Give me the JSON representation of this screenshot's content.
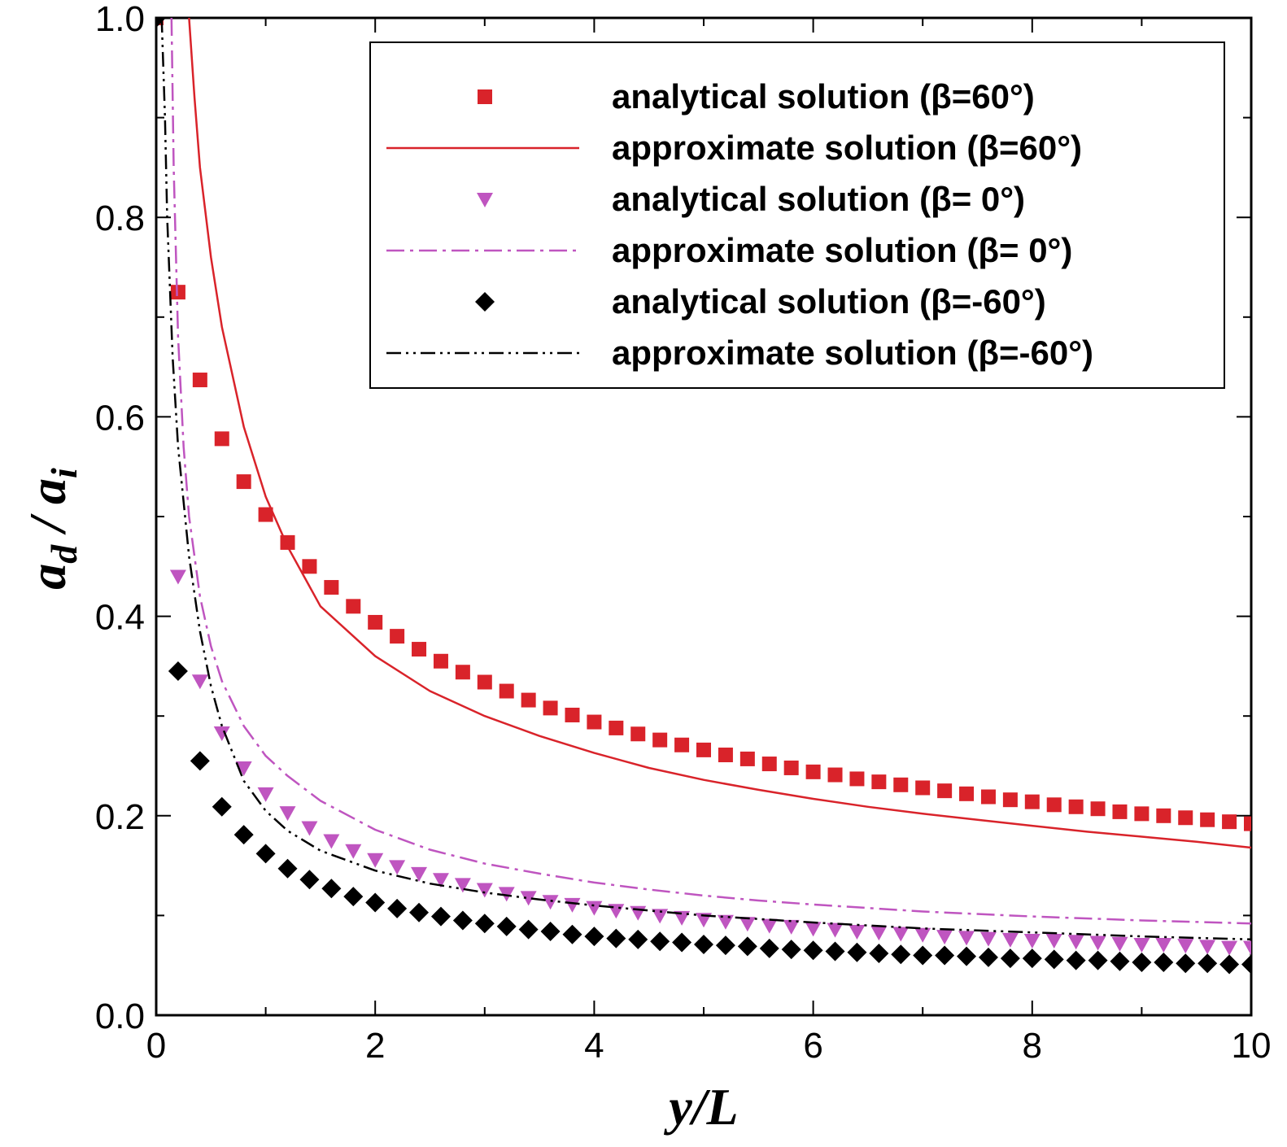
{
  "chart_data": {
    "type": "line",
    "title": "",
    "xlabel": {
      "main": "y/L"
    },
    "ylabel": {
      "num": "a",
      "num_sub": "d",
      "sep": " / ",
      "den": "a",
      "den_sub": "i"
    },
    "xlim": [
      0,
      10
    ],
    "ylim": [
      0,
      1
    ],
    "x_ticks": [
      0,
      2,
      4,
      6,
      8,
      10
    ],
    "y_ticks": [
      0.0,
      0.2,
      0.4,
      0.6,
      0.8,
      1.0
    ],
    "x_tick_labels": [
      "0",
      "2",
      "4",
      "6",
      "8",
      "10"
    ],
    "y_tick_labels": [
      "0.0",
      "0.2",
      "0.4",
      "0.6",
      "0.8",
      "1.0"
    ],
    "grid": false,
    "legend_position": "top-right",
    "colors": {
      "red": "#d9232a",
      "magenta": "#bf55c0",
      "black": "#000000"
    },
    "series": [
      {
        "name": "analytical solution (β=60°)",
        "kind": "marker",
        "marker": "square",
        "color": "#d9232a",
        "points": [
          [
            0,
            1.0
          ],
          [
            0.2,
            0.725
          ],
          [
            0.4,
            0.637
          ],
          [
            0.6,
            0.578
          ],
          [
            0.8,
            0.535
          ],
          [
            1.0,
            0.502
          ],
          [
            1.2,
            0.474
          ],
          [
            1.4,
            0.45
          ],
          [
            1.6,
            0.429
          ],
          [
            1.8,
            0.41
          ],
          [
            2.0,
            0.394
          ],
          [
            2.2,
            0.38
          ],
          [
            2.4,
            0.367
          ],
          [
            2.6,
            0.355
          ],
          [
            2.8,
            0.344
          ],
          [
            3.0,
            0.334
          ],
          [
            3.2,
            0.325
          ],
          [
            3.4,
            0.316
          ],
          [
            3.6,
            0.308
          ],
          [
            3.8,
            0.301
          ],
          [
            4.0,
            0.294
          ],
          [
            4.2,
            0.288
          ],
          [
            4.4,
            0.282
          ],
          [
            4.6,
            0.276
          ],
          [
            4.8,
            0.271
          ],
          [
            5.0,
            0.266
          ],
          [
            5.2,
            0.261
          ],
          [
            5.4,
            0.257
          ],
          [
            5.6,
            0.252
          ],
          [
            5.8,
            0.248
          ],
          [
            6.0,
            0.244
          ],
          [
            6.2,
            0.241
          ],
          [
            6.4,
            0.237
          ],
          [
            6.6,
            0.234
          ],
          [
            6.8,
            0.231
          ],
          [
            7.0,
            0.228
          ],
          [
            7.2,
            0.225
          ],
          [
            7.4,
            0.222
          ],
          [
            7.6,
            0.219
          ],
          [
            7.8,
            0.216
          ],
          [
            8.0,
            0.214
          ],
          [
            8.2,
            0.211
          ],
          [
            8.4,
            0.209
          ],
          [
            8.6,
            0.207
          ],
          [
            8.8,
            0.204
          ],
          [
            9.0,
            0.202
          ],
          [
            9.2,
            0.2
          ],
          [
            9.4,
            0.198
          ],
          [
            9.6,
            0.196
          ],
          [
            9.8,
            0.194
          ],
          [
            10.0,
            0.192
          ]
        ]
      },
      {
        "name": "approximate solution (β=60°)",
        "kind": "line",
        "dash": "solid",
        "color": "#d9232a",
        "points": [
          [
            0.3,
            1.0
          ],
          [
            0.35,
            0.92
          ],
          [
            0.4,
            0.85
          ],
          [
            0.5,
            0.76
          ],
          [
            0.6,
            0.69
          ],
          [
            0.8,
            0.59
          ],
          [
            1.0,
            0.52
          ],
          [
            1.2,
            0.47
          ],
          [
            1.5,
            0.41
          ],
          [
            2.0,
            0.36
          ],
          [
            2.5,
            0.325
          ],
          [
            3.0,
            0.3
          ],
          [
            3.5,
            0.28
          ],
          [
            4.0,
            0.263
          ],
          [
            4.5,
            0.248
          ],
          [
            5.0,
            0.236
          ],
          [
            5.5,
            0.226
          ],
          [
            6.0,
            0.217
          ],
          [
            6.5,
            0.209
          ],
          [
            7.0,
            0.202
          ],
          [
            7.5,
            0.196
          ],
          [
            8.0,
            0.19
          ],
          [
            8.5,
            0.184
          ],
          [
            9.0,
            0.179
          ],
          [
            9.5,
            0.174
          ],
          [
            10.0,
            0.168
          ]
        ]
      },
      {
        "name": "analytical solution (β= 0°)",
        "kind": "marker",
        "marker": "triangle-down",
        "color": "#bf55c0",
        "points": [
          [
            0.2,
            0.44
          ],
          [
            0.4,
            0.335
          ],
          [
            0.6,
            0.283
          ],
          [
            0.8,
            0.248
          ],
          [
            1.0,
            0.222
          ],
          [
            1.2,
            0.203
          ],
          [
            1.4,
            0.188
          ],
          [
            1.6,
            0.175
          ],
          [
            1.8,
            0.165
          ],
          [
            2.0,
            0.156
          ],
          [
            2.2,
            0.149
          ],
          [
            2.4,
            0.142
          ],
          [
            2.6,
            0.136
          ],
          [
            2.8,
            0.131
          ],
          [
            3.0,
            0.126
          ],
          [
            3.2,
            0.122
          ],
          [
            3.4,
            0.118
          ],
          [
            3.6,
            0.114
          ],
          [
            3.8,
            0.111
          ],
          [
            4.0,
            0.108
          ],
          [
            4.2,
            0.105
          ],
          [
            4.4,
            0.103
          ],
          [
            4.6,
            0.1
          ],
          [
            4.8,
            0.098
          ],
          [
            5.0,
            0.096
          ],
          [
            5.2,
            0.094
          ],
          [
            5.4,
            0.092
          ],
          [
            5.6,
            0.09
          ],
          [
            5.8,
            0.089
          ],
          [
            6.0,
            0.087
          ],
          [
            6.2,
            0.086
          ],
          [
            6.4,
            0.084
          ],
          [
            6.6,
            0.083
          ],
          [
            6.8,
            0.082
          ],
          [
            7.0,
            0.081
          ],
          [
            7.2,
            0.079
          ],
          [
            7.4,
            0.078
          ],
          [
            7.6,
            0.077
          ],
          [
            7.8,
            0.076
          ],
          [
            8.0,
            0.075
          ],
          [
            8.2,
            0.075
          ],
          [
            8.4,
            0.074
          ],
          [
            8.6,
            0.073
          ],
          [
            8.8,
            0.072
          ],
          [
            9.0,
            0.071
          ],
          [
            9.2,
            0.071
          ],
          [
            9.4,
            0.07
          ],
          [
            9.6,
            0.069
          ],
          [
            9.8,
            0.068
          ],
          [
            10.0,
            0.068
          ]
        ]
      },
      {
        "name": "approximate solution (β= 0°)",
        "kind": "line",
        "dash": "dashdot",
        "color": "#bf55c0",
        "points": [
          [
            0.14,
            1.0
          ],
          [
            0.16,
            0.85
          ],
          [
            0.2,
            0.68
          ],
          [
            0.25,
            0.57
          ],
          [
            0.3,
            0.5
          ],
          [
            0.4,
            0.42
          ],
          [
            0.5,
            0.37
          ],
          [
            0.6,
            0.335
          ],
          [
            0.8,
            0.29
          ],
          [
            1.0,
            0.26
          ],
          [
            1.2,
            0.24
          ],
          [
            1.5,
            0.215
          ],
          [
            2.0,
            0.186
          ],
          [
            2.5,
            0.166
          ],
          [
            3.0,
            0.152
          ],
          [
            3.5,
            0.142
          ],
          [
            4.0,
            0.133
          ],
          [
            4.5,
            0.126
          ],
          [
            5.0,
            0.12
          ],
          [
            5.5,
            0.115
          ],
          [
            6.0,
            0.111
          ],
          [
            7.0,
            0.104
          ],
          [
            8.0,
            0.099
          ],
          [
            9.0,
            0.095
          ],
          [
            10.0,
            0.092
          ]
        ]
      },
      {
        "name": "analytical solution (β=-60°)",
        "kind": "marker",
        "marker": "diamond",
        "color": "#000000",
        "points": [
          [
            0,
            1.0
          ],
          [
            0.2,
            0.345
          ],
          [
            0.4,
            0.255
          ],
          [
            0.6,
            0.209
          ],
          [
            0.8,
            0.181
          ],
          [
            1.0,
            0.162
          ],
          [
            1.2,
            0.147
          ],
          [
            1.4,
            0.136
          ],
          [
            1.6,
            0.127
          ],
          [
            1.8,
            0.119
          ],
          [
            2.0,
            0.113
          ],
          [
            2.2,
            0.107
          ],
          [
            2.4,
            0.103
          ],
          [
            2.6,
            0.099
          ],
          [
            2.8,
            0.095
          ],
          [
            3.0,
            0.092
          ],
          [
            3.2,
            0.089
          ],
          [
            3.4,
            0.086
          ],
          [
            3.6,
            0.084
          ],
          [
            3.8,
            0.081
          ],
          [
            4.0,
            0.079
          ],
          [
            4.2,
            0.077
          ],
          [
            4.4,
            0.076
          ],
          [
            4.6,
            0.074
          ],
          [
            4.8,
            0.073
          ],
          [
            5.0,
            0.071
          ],
          [
            5.2,
            0.07
          ],
          [
            5.4,
            0.069
          ],
          [
            5.6,
            0.067
          ],
          [
            5.8,
            0.066
          ],
          [
            6.0,
            0.065
          ],
          [
            6.2,
            0.064
          ],
          [
            6.4,
            0.063
          ],
          [
            6.6,
            0.062
          ],
          [
            6.8,
            0.061
          ],
          [
            7.0,
            0.06
          ],
          [
            7.2,
            0.06
          ],
          [
            7.4,
            0.059
          ],
          [
            7.6,
            0.058
          ],
          [
            7.8,
            0.057
          ],
          [
            8.0,
            0.057
          ],
          [
            8.2,
            0.056
          ],
          [
            8.4,
            0.055
          ],
          [
            8.6,
            0.055
          ],
          [
            8.8,
            0.054
          ],
          [
            9.0,
            0.053
          ],
          [
            9.2,
            0.053
          ],
          [
            9.4,
            0.052
          ],
          [
            9.6,
            0.052
          ],
          [
            9.8,
            0.051
          ],
          [
            10.0,
            0.051
          ]
        ]
      },
      {
        "name": "approximate solution (β=-60°)",
        "kind": "line",
        "dash": "dashdotdot",
        "color": "#000000",
        "points": [
          [
            0.05,
            1.0
          ],
          [
            0.08,
            0.9
          ],
          [
            0.1,
            0.8
          ],
          [
            0.15,
            0.66
          ],
          [
            0.2,
            0.57
          ],
          [
            0.3,
            0.46
          ],
          [
            0.4,
            0.385
          ],
          [
            0.5,
            0.33
          ],
          [
            0.6,
            0.29
          ],
          [
            0.8,
            0.235
          ],
          [
            1.0,
            0.205
          ],
          [
            1.2,
            0.185
          ],
          [
            1.5,
            0.165
          ],
          [
            2.0,
            0.145
          ],
          [
            2.5,
            0.132
          ],
          [
            3.0,
            0.123
          ],
          [
            3.5,
            0.116
          ],
          [
            4.0,
            0.11
          ],
          [
            4.5,
            0.105
          ],
          [
            5.0,
            0.1
          ],
          [
            6.0,
            0.093
          ],
          [
            7.0,
            0.087
          ],
          [
            8.0,
            0.083
          ],
          [
            9.0,
            0.079
          ],
          [
            10.0,
            0.076
          ]
        ]
      }
    ]
  }
}
